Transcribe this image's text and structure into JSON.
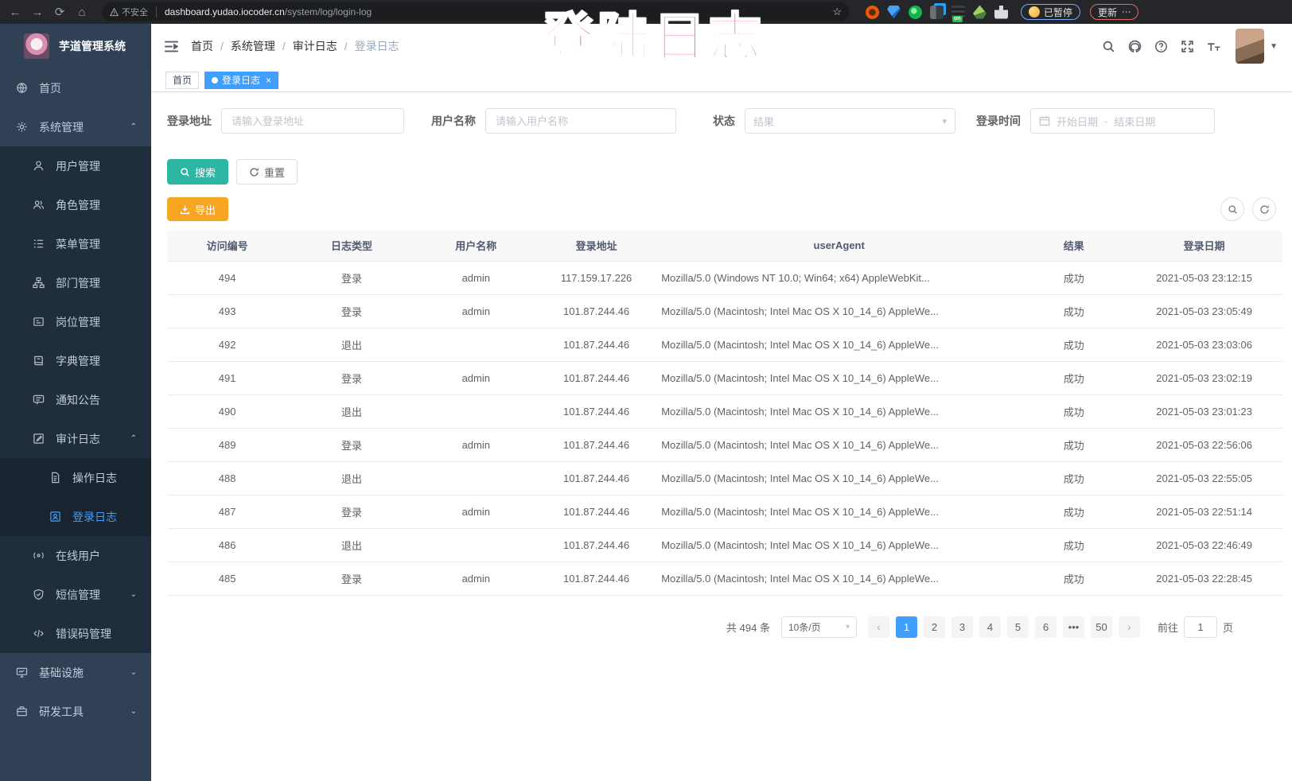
{
  "browser": {
    "security_label": "不安全",
    "url_domain": "dashboard.yudao.iocoder.cn",
    "url_path": "/system/log/login-log",
    "paused_chip_label": "已暂停",
    "update_button_label": "更新"
  },
  "overlay": {
    "annotation_text": "登陆日志",
    "annotation_color": "#f2336b"
  },
  "sidebar": {
    "title": "芋道管理系统",
    "active_color": "#409eff",
    "items": [
      {
        "name": "home",
        "label": "首页",
        "icon": "dashboard",
        "depth": 0
      },
      {
        "name": "system-mgmt",
        "label": "系统管理",
        "icon": "gear",
        "depth": 0,
        "caret": "up"
      },
      {
        "name": "user-mgmt",
        "label": "用户管理",
        "icon": "user",
        "depth": 1
      },
      {
        "name": "role-mgmt",
        "label": "角色管理",
        "icon": "users",
        "depth": 1
      },
      {
        "name": "menu-mgmt",
        "label": "菜单管理",
        "icon": "menu",
        "depth": 1
      },
      {
        "name": "dept-mgmt",
        "label": "部门管理",
        "icon": "tree",
        "depth": 1
      },
      {
        "name": "post-mgmt",
        "label": "岗位管理",
        "icon": "badge",
        "depth": 1
      },
      {
        "name": "dict-mgmt",
        "label": "字典管理",
        "icon": "dict",
        "depth": 1
      },
      {
        "name": "notice",
        "label": "通知公告",
        "icon": "message",
        "depth": 1
      },
      {
        "name": "audit-log",
        "label": "审计日志",
        "icon": "log",
        "depth": 1,
        "caret": "up"
      },
      {
        "name": "operate-log",
        "label": "操作日志",
        "icon": "form",
        "depth": 2
      },
      {
        "name": "login-log",
        "label": "登录日志",
        "icon": "logininfor",
        "depth": 2,
        "active": true
      },
      {
        "name": "online-users",
        "label": "在线用户",
        "icon": "online",
        "depth": 1
      },
      {
        "name": "sms-mgmt",
        "label": "短信管理",
        "icon": "sms",
        "depth": 1,
        "caret": "down"
      },
      {
        "name": "errcode-mgmt",
        "label": "错误码管理",
        "icon": "code",
        "depth": 1
      },
      {
        "name": "infrastructure",
        "label": "基础设施",
        "icon": "infra",
        "depth": 0,
        "caret": "down"
      },
      {
        "name": "dev-tools",
        "label": "研发工具",
        "icon": "tool",
        "depth": 0,
        "caret": "down"
      }
    ]
  },
  "header": {
    "breadcrumb": [
      "首页",
      "系统管理",
      "审计日志",
      "登录日志"
    ]
  },
  "tags": [
    {
      "label": "首页",
      "active": false,
      "closable": false
    },
    {
      "label": "登录日志",
      "active": true,
      "closable": true
    }
  ],
  "filters": {
    "address_label": "登录地址",
    "address_placeholder": "请输入登录地址",
    "username_label": "用户名称",
    "username_placeholder": "请输入用户名称",
    "status_label": "状态",
    "status_placeholder": "结果",
    "time_label": "登录时间",
    "date_start_placeholder": "开始日期",
    "date_separator": "-",
    "date_end_placeholder": "结束日期",
    "search_label": "搜索",
    "reset_label": "重置",
    "export_label": "导出"
  },
  "table": {
    "headers": [
      "访问编号",
      "日志类型",
      "用户名称",
      "登录地址",
      "userAgent",
      "结果",
      "登录日期"
    ],
    "rows": [
      [
        "494",
        "登录",
        "admin",
        "117.159.17.226",
        "Mozilla/5.0 (Windows NT 10.0; Win64; x64) AppleWebKit...",
        "成功",
        "2021-05-03 23:12:15"
      ],
      [
        "493",
        "登录",
        "admin",
        "101.87.244.46",
        "Mozilla/5.0 (Macintosh; Intel Mac OS X 10_14_6) AppleWe...",
        "成功",
        "2021-05-03 23:05:49"
      ],
      [
        "492",
        "退出",
        "",
        "101.87.244.46",
        "Mozilla/5.0 (Macintosh; Intel Mac OS X 10_14_6) AppleWe...",
        "成功",
        "2021-05-03 23:03:06"
      ],
      [
        "491",
        "登录",
        "admin",
        "101.87.244.46",
        "Mozilla/5.0 (Macintosh; Intel Mac OS X 10_14_6) AppleWe...",
        "成功",
        "2021-05-03 23:02:19"
      ],
      [
        "490",
        "退出",
        "",
        "101.87.244.46",
        "Mozilla/5.0 (Macintosh; Intel Mac OS X 10_14_6) AppleWe...",
        "成功",
        "2021-05-03 23:01:23"
      ],
      [
        "489",
        "登录",
        "admin",
        "101.87.244.46",
        "Mozilla/5.0 (Macintosh; Intel Mac OS X 10_14_6) AppleWe...",
        "成功",
        "2021-05-03 22:56:06"
      ],
      [
        "488",
        "退出",
        "",
        "101.87.244.46",
        "Mozilla/5.0 (Macintosh; Intel Mac OS X 10_14_6) AppleWe...",
        "成功",
        "2021-05-03 22:55:05"
      ],
      [
        "487",
        "登录",
        "admin",
        "101.87.244.46",
        "Mozilla/5.0 (Macintosh; Intel Mac OS X 10_14_6) AppleWe...",
        "成功",
        "2021-05-03 22:51:14"
      ],
      [
        "486",
        "退出",
        "",
        "101.87.244.46",
        "Mozilla/5.0 (Macintosh; Intel Mac OS X 10_14_6) AppleWe...",
        "成功",
        "2021-05-03 22:46:49"
      ],
      [
        "485",
        "登录",
        "admin",
        "101.87.244.46",
        "Mozilla/5.0 (Macintosh; Intel Mac OS X 10_14_6) AppleWe...",
        "成功",
        "2021-05-03 22:28:45"
      ]
    ]
  },
  "pagination": {
    "total_label": "共 494 条",
    "page_size_value": "10条/页",
    "pages": [
      "1",
      "2",
      "3",
      "4",
      "5",
      "6",
      "•••",
      "50"
    ],
    "active_page": "1",
    "goto_label": "前往",
    "goto_value": "1",
    "goto_unit": "页"
  }
}
